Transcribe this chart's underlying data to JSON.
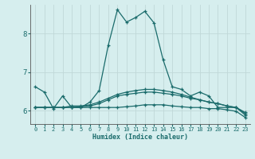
{
  "xlabel": "Humidex (Indice chaleur)",
  "background_color": "#d6eeee",
  "grid_color": "#c0d8d8",
  "line_color": "#1a6b6b",
  "xlim": [
    -0.5,
    23.5
  ],
  "ylim": [
    5.65,
    8.75
  ],
  "yticks": [
    6,
    7,
    8
  ],
  "xticks": [
    0,
    1,
    2,
    3,
    4,
    5,
    6,
    7,
    8,
    9,
    10,
    11,
    12,
    13,
    14,
    15,
    16,
    17,
    18,
    19,
    20,
    21,
    22,
    23
  ],
  "series": [
    [
      6.62,
      6.48,
      6.05,
      6.38,
      6.08,
      6.08,
      6.22,
      6.52,
      7.7,
      8.62,
      8.3,
      8.42,
      8.58,
      8.28,
      7.32,
      6.62,
      6.55,
      6.38,
      6.48,
      6.38,
      6.08,
      6.08,
      6.08,
      5.88
    ],
    [
      6.08,
      6.08,
      6.08,
      6.08,
      6.12,
      6.12,
      6.15,
      6.22,
      6.32,
      6.42,
      6.48,
      6.52,
      6.55,
      6.55,
      6.52,
      6.48,
      6.42,
      6.35,
      6.28,
      6.22,
      6.18,
      6.12,
      6.08,
      5.95
    ],
    [
      6.08,
      6.08,
      6.08,
      6.08,
      6.08,
      6.08,
      6.08,
      6.08,
      6.08,
      6.08,
      6.1,
      6.12,
      6.15,
      6.15,
      6.15,
      6.12,
      6.1,
      6.08,
      6.08,
      6.05,
      6.05,
      6.02,
      5.98,
      5.82
    ],
    [
      6.08,
      6.08,
      6.08,
      6.08,
      6.08,
      6.1,
      6.12,
      6.18,
      6.28,
      6.38,
      6.42,
      6.45,
      6.48,
      6.48,
      6.45,
      6.42,
      6.38,
      6.32,
      6.28,
      6.22,
      6.18,
      6.12,
      6.08,
      5.92
    ]
  ]
}
